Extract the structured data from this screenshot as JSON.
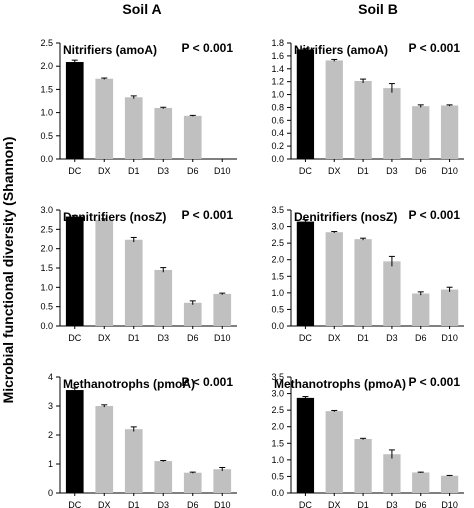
{
  "columns": [
    "Soil A",
    "Soil B"
  ],
  "ylabel": "Microbial functional diversity (Shannon)",
  "colors": {
    "control": "#000000",
    "treatment": "#c0c0c0",
    "axis": "#000000"
  },
  "chart_data": [
    {
      "type": "bar",
      "column": "Soil A",
      "title": "Nitrifiers (amoA)",
      "annotation": "P < 0.001",
      "categories": [
        "DC",
        "DX",
        "D1",
        "D3",
        "D6",
        "D10"
      ],
      "values": [
        2.09,
        1.73,
        1.33,
        1.1,
        0.93,
        0
      ],
      "errors": [
        0.04,
        0.015,
        0.03,
        0.015,
        0.01,
        0
      ],
      "ylim": [
        0,
        2.5
      ],
      "yticks": [
        "0.0",
        "0.5",
        "1.0",
        "1.5",
        "2.0",
        "2.5"
      ],
      "xlabel": "",
      "ylabel": ""
    },
    {
      "type": "bar",
      "column": "Soil B",
      "title": "Nitrifiers (amoA)",
      "annotation": "P < 0.001",
      "categories": [
        "DC",
        "DX",
        "D1",
        "D3",
        "D6",
        "D10"
      ],
      "values": [
        1.7,
        1.53,
        1.21,
        1.1,
        0.82,
        0.83
      ],
      "errors": [
        0.01,
        0.015,
        0.03,
        0.07,
        0.02,
        0.01
      ],
      "ylim": [
        0,
        1.8
      ],
      "yticks": [
        "0.0",
        "0.2",
        "0.4",
        "0.6",
        "0.8",
        "1.0",
        "1.2",
        "1.4",
        "1.6",
        "1.8"
      ],
      "xlabel": "",
      "ylabel": ""
    },
    {
      "type": "bar",
      "column": "Soil A",
      "title": "Denitrifiers (nosZ)",
      "annotation": "P < 0.001",
      "categories": [
        "DC",
        "DX",
        "D1",
        "D3",
        "D6",
        "D10"
      ],
      "values": [
        2.83,
        2.74,
        2.23,
        1.45,
        0.6,
        0.83
      ],
      "errors": [
        0.03,
        0.03,
        0.06,
        0.06,
        0.05,
        0.02
      ],
      "ylim": [
        0,
        3.0
      ],
      "yticks": [
        "0.0",
        "0.5",
        "1.0",
        "1.5",
        "2.0",
        "2.5",
        "3.0"
      ],
      "xlabel": "",
      "ylabel": ""
    },
    {
      "type": "bar",
      "column": "Soil B",
      "title": "Denitrifiers (nosZ)",
      "annotation": "P < 0.001",
      "categories": [
        "DC",
        "DX",
        "D1",
        "D3",
        "D6",
        "D10"
      ],
      "values": [
        3.15,
        2.83,
        2.62,
        1.95,
        0.98,
        1.1
      ],
      "errors": [
        0.06,
        0.02,
        0.03,
        0.15,
        0.05,
        0.07
      ],
      "ylim": [
        0,
        3.5
      ],
      "yticks": [
        "0.0",
        "0.5",
        "1.0",
        "1.5",
        "2.0",
        "2.5",
        "3.0",
        "3.5"
      ],
      "xlabel": "",
      "ylabel": ""
    },
    {
      "type": "bar",
      "column": "Soil A",
      "title": "Methanotrophs (pmoA)",
      "annotation": "P < 0.001",
      "categories": [
        "DC",
        "DX",
        "D1",
        "D3",
        "D6",
        "D10"
      ],
      "values": [
        3.55,
        3.0,
        2.2,
        1.1,
        0.7,
        0.82
      ],
      "errors": [
        0.07,
        0.04,
        0.08,
        0.02,
        0.02,
        0.06
      ],
      "ylim": [
        0,
        4
      ],
      "yticks": [
        "0",
        "1",
        "2",
        "3",
        "4"
      ],
      "xlabel": "",
      "ylabel": ""
    },
    {
      "type": "bar",
      "column": "Soil B",
      "title": "Methanotrophs (pmoA)",
      "annotation": "P < 0.001",
      "categories": [
        "DC",
        "DX",
        "D1",
        "D3",
        "D6",
        "D10"
      ],
      "values": [
        2.87,
        2.47,
        1.63,
        1.17,
        0.62,
        0.52
      ],
      "errors": [
        0.04,
        0.02,
        0.02,
        0.13,
        0.01,
        0.01
      ],
      "ylim": [
        0,
        3.5
      ],
      "yticks": [
        "0.0",
        "0.5",
        "1.0",
        "1.5",
        "2.0",
        "2.5",
        "3.0",
        "3.5"
      ],
      "xlabel": "",
      "ylabel": ""
    }
  ]
}
